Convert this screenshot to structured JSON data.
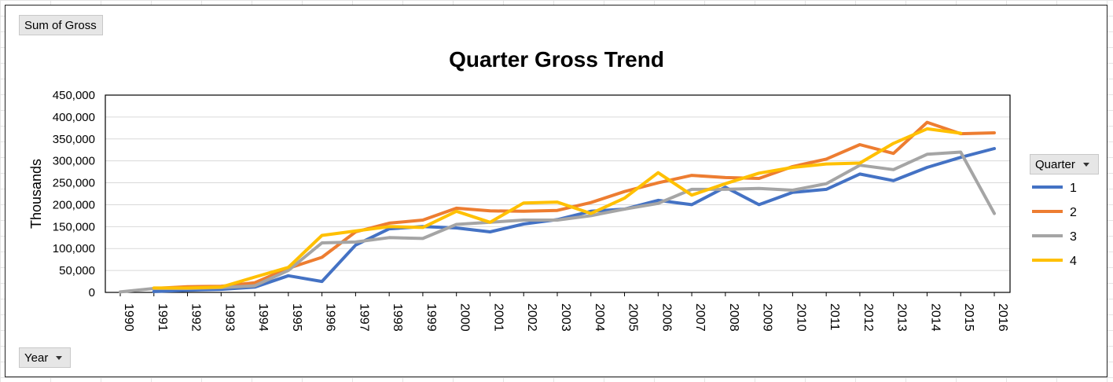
{
  "field_buttons": {
    "values": "Sum of Gross",
    "axis": "Year",
    "legend": "Quarter"
  },
  "chart_data": {
    "type": "line",
    "title": "Quarter Gross Trend",
    "xlabel": "",
    "ylabel": "Thousands",
    "ylim": [
      0,
      450000
    ],
    "yticks": [
      0,
      50000,
      100000,
      150000,
      200000,
      250000,
      300000,
      350000,
      400000,
      450000
    ],
    "ytick_labels": [
      "0",
      "50,000",
      "100,000",
      "150,000",
      "200,000",
      "250,000",
      "300,000",
      "350,000",
      "400,000",
      "450,000"
    ],
    "grid": "horizontal",
    "legend_position": "right",
    "categories": [
      "1990",
      "1991",
      "1992",
      "1993",
      "1994",
      "1995",
      "1996",
      "1997",
      "1998",
      "1999",
      "2000",
      "2001",
      "2002",
      "2003",
      "2004",
      "2005",
      "2006",
      "2007",
      "2008",
      "2009",
      "2010",
      "2011",
      "2012",
      "2013",
      "2014",
      "2015",
      "2016"
    ],
    "series": [
      {
        "name": "1",
        "color": "#4472C4",
        "values": [
          null,
          2000,
          5000,
          7000,
          12000,
          38000,
          25000,
          108000,
          145000,
          150000,
          147000,
          138000,
          156000,
          166000,
          185000,
          190000,
          210000,
          200000,
          240000,
          200000,
          228000,
          235000,
          270000,
          255000,
          285000,
          308000,
          328000
        ]
      },
      {
        "name": "2",
        "color": "#ED7D31",
        "values": [
          null,
          9000,
          13000,
          14000,
          22000,
          55000,
          80000,
          138000,
          158000,
          165000,
          192000,
          186000,
          185000,
          187000,
          205000,
          230000,
          250000,
          267000,
          262000,
          260000,
          287000,
          304000,
          337000,
          317000,
          388000,
          362000,
          364000
        ]
      },
      {
        "name": "3",
        "color": "#A5A5A5",
        "values": [
          1000,
          9000,
          9000,
          11000,
          15000,
          50000,
          113000,
          115000,
          125000,
          123000,
          155000,
          160000,
          165000,
          165000,
          175000,
          190000,
          203000,
          235000,
          235000,
          237000,
          233000,
          248000,
          290000,
          280000,
          315000,
          320000,
          180000
        ]
      },
      {
        "name": "4",
        "color": "#FFC000",
        "values": [
          null,
          10000,
          10000,
          12000,
          35000,
          57000,
          130000,
          140000,
          150000,
          148000,
          185000,
          160000,
          204000,
          206000,
          180000,
          215000,
          273000,
          222000,
          248000,
          272000,
          285000,
          293000,
          295000,
          340000,
          373000,
          363000,
          null
        ]
      }
    ]
  }
}
